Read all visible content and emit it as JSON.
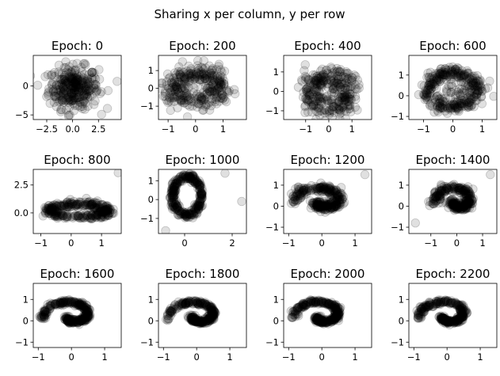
{
  "chart_data": {
    "type": "scatter",
    "title": "Sharing x per column, y per row",
    "marker_color": "#000000",
    "marker_alpha": 0.12,
    "panels": [
      {
        "title": "Epoch: 0",
        "shape": "blob",
        "xlim": [
          -3.8,
          4.7
        ],
        "ylim": [
          -5.8,
          5.3
        ],
        "xticks": [
          -2.5,
          0.0,
          2.5
        ],
        "xtick_labels": [
          "−2.5",
          "0.0",
          "2.5"
        ],
        "yticks": [
          -5,
          0
        ],
        "ytick_labels": [
          "−5",
          "0"
        ]
      },
      {
        "title": "Epoch: 200",
        "shape": "ring_noisy",
        "xlim": [
          -1.35,
          1.85
        ],
        "ylim": [
          -1.75,
          1.85
        ],
        "xticks": [
          -1,
          0,
          1
        ],
        "xtick_labels": [
          "−1",
          "0",
          "1"
        ],
        "yticks": [
          -1,
          0,
          1
        ],
        "ytick_labels": [
          "−1",
          "0",
          "1"
        ]
      },
      {
        "title": "Epoch: 400",
        "shape": "ring_noisy",
        "xlim": [
          -1.95,
          1.85
        ],
        "ylim": [
          -1.45,
          1.85
        ],
        "xticks": [
          -1,
          0,
          1
        ],
        "xtick_labels": [
          "−1",
          "0",
          "1"
        ],
        "yticks": [
          -1,
          0,
          1
        ],
        "ytick_labels": [
          "−1",
          "0",
          "1"
        ]
      },
      {
        "title": "Epoch: 600",
        "shape": "ring",
        "xlim": [
          -1.5,
          1.5
        ],
        "ylim": [
          -1.15,
          1.95
        ],
        "xticks": [
          -1,
          0,
          1
        ],
        "xtick_labels": [
          "−1",
          "0",
          "1"
        ],
        "yticks": [
          -1,
          0,
          1
        ],
        "ytick_labels": [
          "−1",
          "0",
          "1"
        ]
      },
      {
        "title": "Epoch: 800",
        "shape": "flat_ellipse",
        "xlim": [
          -1.25,
          1.65
        ],
        "ylim": [
          -1.85,
          3.9
        ],
        "xticks": [
          -1,
          0,
          1
        ],
        "xtick_labels": [
          "−1",
          "0",
          "1"
        ],
        "yticks": [
          0.0,
          2.5
        ],
        "ytick_labels": [
          "0.0",
          "2.5"
        ]
      },
      {
        "title": "Epoch: 1000",
        "shape": "small_ring",
        "xlim": [
          -1.1,
          2.6
        ],
        "ylim": [
          -1.8,
          1.6
        ],
        "xticks": [
          0,
          2
        ],
        "xtick_labels": [
          "0",
          "2"
        ],
        "yticks": [
          -1,
          0,
          1
        ],
        "ytick_labels": [
          "−1",
          "0",
          "1"
        ]
      },
      {
        "title": "Epoch: 1200",
        "shape": "spiral_loose",
        "xlim": [
          -1.15,
          1.5
        ],
        "ylim": [
          -1.3,
          1.75
        ],
        "xticks": [
          -1,
          0,
          1
        ],
        "xtick_labels": [
          "−1",
          "0",
          "1"
        ],
        "yticks": [
          -1,
          0,
          1
        ],
        "ytick_labels": [
          "−1",
          "0",
          "1"
        ]
      },
      {
        "title": "Epoch: 1400",
        "shape": "spiral_loose",
        "xlim": [
          -1.85,
          1.55
        ],
        "ylim": [
          -1.3,
          1.75
        ],
        "xticks": [
          -1,
          0,
          1
        ],
        "xtick_labels": [
          "−1",
          "0",
          "1"
        ],
        "yticks": [
          -1,
          0,
          1
        ],
        "ytick_labels": [
          "−1",
          "0",
          "1"
        ]
      },
      {
        "title": "Epoch: 1600",
        "shape": "spiral",
        "xlim": [
          -1.15,
          1.5
        ],
        "ylim": [
          -1.25,
          1.75
        ],
        "xticks": [
          -1,
          0,
          1
        ],
        "xtick_labels": [
          "−1",
          "0",
          "1"
        ],
        "yticks": [
          -1,
          0,
          1
        ],
        "ytick_labels": [
          "−1",
          "0",
          "1"
        ]
      },
      {
        "title": "Epoch: 1800",
        "shape": "spiral",
        "xlim": [
          -1.15,
          1.5
        ],
        "ylim": [
          -1.25,
          1.75
        ],
        "xticks": [
          -1,
          0,
          1
        ],
        "xtick_labels": [
          "−1",
          "0",
          "1"
        ],
        "yticks": [
          -1,
          0,
          1
        ],
        "ytick_labels": [
          "−1",
          "0",
          "1"
        ]
      },
      {
        "title": "Epoch: 2000",
        "shape": "spiral",
        "xlim": [
          -1.15,
          1.5
        ],
        "ylim": [
          -1.25,
          1.75
        ],
        "xticks": [
          -1,
          0,
          1
        ],
        "xtick_labels": [
          "−1",
          "0",
          "1"
        ],
        "yticks": [
          -1,
          0,
          1
        ],
        "ytick_labels": [
          "−1",
          "0",
          "1"
        ]
      },
      {
        "title": "Epoch: 2200",
        "shape": "spiral",
        "xlim": [
          -1.15,
          1.5
        ],
        "ylim": [
          -1.25,
          1.75
        ],
        "xticks": [
          -1,
          0,
          1
        ],
        "xtick_labels": [
          "−1",
          "0",
          "1"
        ],
        "yticks": [
          -1,
          0,
          1
        ],
        "ytick_labels": [
          "−1",
          "0",
          "1"
        ]
      }
    ]
  }
}
